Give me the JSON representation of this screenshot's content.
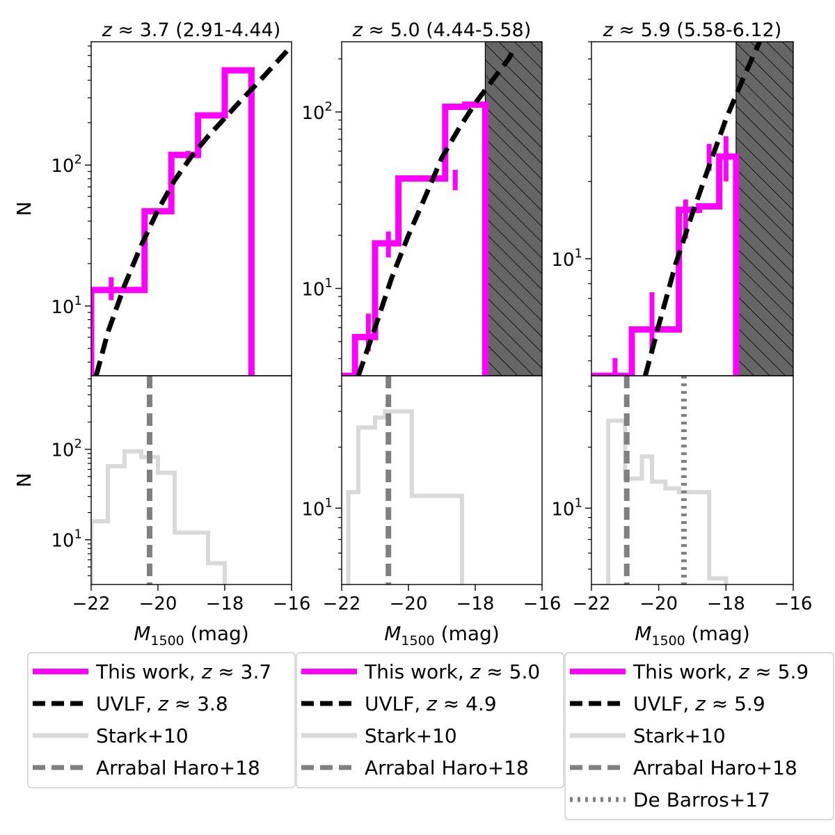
{
  "chart_data": [
    {
      "type": "step",
      "panel": "top",
      "title": "z ≈ 3.7 (2.91-4.44)",
      "xlabel": "",
      "ylabel": "N",
      "xlim": [
        -22,
        -16
      ],
      "ylim": [
        3.2,
        750
      ],
      "yscale": "log",
      "yticks": [
        {
          "value": 10,
          "label": "10",
          "sup": "1"
        },
        {
          "value": 100,
          "label": "10",
          "sup": "2"
        }
      ],
      "xticks": [],
      "hatched_region": null,
      "histogram": {
        "name": "This work, z ≈ 3.7",
        "color": "#ff00ff",
        "edges": [
          -22,
          -21.2,
          -20.4,
          -19.6,
          -18.8,
          -18.0,
          -17.2,
          -16.5
        ],
        "counts": [
          13,
          13,
          47,
          118,
          225,
          470,
          2
        ],
        "errorbars": [
          {
            "x": -21.4,
            "lo": 11,
            "hi": 16
          },
          {
            "x": -19.1,
            "lo": 110,
            "hi": 126
          }
        ]
      },
      "model_curve": {
        "name": "UVLF, z ≈ 3.8",
        "color": "#000000",
        "x": [
          -21.85,
          -21.5,
          -21.0,
          -20.5,
          -20.0,
          -19.5,
          -19.0,
          -18.5,
          -18.0,
          -17.5,
          -17.0,
          -16.5,
          -16.0
        ],
        "y": [
          3.2,
          6.5,
          14,
          27,
          48,
          78,
          115,
          160,
          215,
          290,
          385,
          520,
          700
        ]
      },
      "vlines": []
    },
    {
      "type": "step",
      "panel": "top",
      "title": "z ≈ 5.0 (4.44-5.58)",
      "xlabel": "",
      "ylabel": "",
      "xlim": [
        -22,
        -16
      ],
      "ylim": [
        3.2,
        250
      ],
      "yscale": "log",
      "yticks": [
        {
          "value": 10,
          "label": "10",
          "sup": "1"
        },
        {
          "value": 100,
          "label": "10",
          "sup": "2"
        }
      ],
      "xticks": [],
      "hatched_region": {
        "x0": -17.7,
        "x1": -16
      },
      "histogram": {
        "name": "This work, z ≈ 5.0",
        "color": "#ff00ff",
        "edges": [
          -22,
          -21.6,
          -21.0,
          -20.3,
          -19.6,
          -18.9,
          -18.3,
          -17.7
        ],
        "counts": [
          3.2,
          5.3,
          18,
          42,
          42,
          107,
          110
        ],
        "errorbars": [
          {
            "x": -20.6,
            "lo": 15,
            "hi": 21
          },
          {
            "x": -21.2,
            "lo": 4.4,
            "hi": 7.2
          },
          {
            "x": -18.6,
            "lo": 36,
            "hi": 47
          }
        ]
      },
      "model_curve": {
        "name": "UVLF, z ≈ 4.9",
        "color": "#000000",
        "x": [
          -21.5,
          -21.0,
          -20.5,
          -20.0,
          -19.5,
          -19.0,
          -18.5,
          -18.0,
          -17.5,
          -17.0,
          -16.8
        ],
        "y": [
          3.2,
          6,
          11.5,
          20,
          33,
          55,
          80,
          112,
          150,
          200,
          235
        ]
      },
      "vlines": []
    },
    {
      "type": "step",
      "panel": "top",
      "title": "z ≈ 5.9 (5.58-6.12)",
      "xlabel": "",
      "ylabel": "",
      "xlim": [
        -22,
        -16
      ],
      "ylim": [
        3.5,
        70
      ],
      "yscale": "log",
      "yticks": [
        {
          "value": 10,
          "label": "10",
          "sup": "1"
        }
      ],
      "xticks": [],
      "hatched_region": {
        "x0": -17.7,
        "x1": -16
      },
      "histogram": {
        "name": "This work, z ≈ 5.9",
        "color": "#ff00ff",
        "edges": [
          -22,
          -21.3,
          -20.8,
          -20.0,
          -19.4,
          -18.8,
          -18.2,
          -17.7
        ],
        "counts": [
          3.5,
          3.5,
          5.3,
          5.3,
          15.5,
          16,
          25
        ],
        "errorbars": [
          {
            "x": -21.3,
            "lo": 3.5,
            "hi": 4.1
          },
          {
            "x": -20.2,
            "lo": 4.3,
            "hi": 7.4
          },
          {
            "x": -19.2,
            "lo": 12,
            "hi": 17
          },
          {
            "x": -18.5,
            "lo": 22,
            "hi": 28
          },
          {
            "x": -18.0,
            "lo": 20,
            "hi": 30
          }
        ]
      },
      "model_curve": {
        "name": "UVLF, z ≈ 5.9",
        "color": "#000000",
        "x": [
          -20.4,
          -20.0,
          -19.5,
          -19.0,
          -18.5,
          -18.0,
          -17.5,
          -17.0
        ],
        "y": [
          3.5,
          5.5,
          9.5,
          15,
          23,
          35,
          50,
          70
        ]
      },
      "vlines": []
    },
    {
      "type": "step",
      "panel": "bottom",
      "title": "",
      "xlabel": "M1500 (mag)",
      "ylabel": "N",
      "xlim": [
        -22,
        -16
      ],
      "ylim": [
        3.2,
        650
      ],
      "yscale": "log",
      "yticks": [
        {
          "value": 10,
          "label": "10",
          "sup": "1"
        },
        {
          "value": 100,
          "label": "10",
          "sup": "2"
        }
      ],
      "xticks": [
        -22,
        -20,
        -18,
        -16
      ],
      "xtick_labels": [
        "−22",
        "−20",
        "−18",
        "−16"
      ],
      "hatched_region": null,
      "histogram": {
        "name": "Stark+10",
        "color": "#d9d9d9",
        "edges": [
          -22,
          -21.5,
          -21.0,
          -20.5,
          -20.0,
          -19.5,
          -19.0,
          -18.5,
          -18.0
        ],
        "counts": [
          16,
          65,
          95,
          82,
          55,
          12,
          12,
          5.5
        ],
        "errorbars": []
      },
      "model_curve": null,
      "vlines": [
        {
          "name": "Arrabal Haro+18",
          "x": -20.25,
          "style": "dashed",
          "color": "#808080"
        }
      ]
    },
    {
      "type": "step",
      "panel": "bottom",
      "title": "",
      "xlabel": "M1500 (mag)",
      "ylabel": "",
      "xlim": [
        -22,
        -16
      ],
      "ylim": [
        4.2,
        45
      ],
      "yscale": "log",
      "yticks": [
        {
          "value": 10,
          "label": "10",
          "sup": "1"
        }
      ],
      "xticks": [
        -22,
        -20,
        -18,
        -16
      ],
      "xtick_labels": [
        "−22",
        "−20",
        "−18",
        "−16"
      ],
      "hatched_region": null,
      "histogram": {
        "name": "Stark+10",
        "color": "#d9d9d9",
        "edges": [
          -21.8,
          -21.5,
          -21.0,
          -20.7,
          -19.9,
          -18.4
        ],
        "counts": [
          12,
          25,
          28,
          30,
          11.5
        ],
        "errorbars": []
      },
      "model_curve": null,
      "vlines": [
        {
          "name": "Arrabal Haro+18",
          "x": -20.6,
          "style": "dashed",
          "color": "#808080"
        }
      ]
    },
    {
      "type": "step",
      "panel": "bottom",
      "title": "",
      "xlabel": "M1500 (mag)",
      "ylabel": "",
      "xlim": [
        -22,
        -16
      ],
      "ylim": [
        4.2,
        45
      ],
      "yscale": "log",
      "yticks": [
        {
          "value": 10,
          "label": "10",
          "sup": "1"
        }
      ],
      "xticks": [
        -22,
        -20,
        -18,
        -16
      ],
      "xtick_labels": [
        "−22",
        "−20",
        "−18",
        "−16"
      ],
      "hatched_region": null,
      "histogram": {
        "name": "Stark+10",
        "color": "#d9d9d9",
        "edges": [
          -21.5,
          -21.3,
          -21.0,
          -20.5,
          -20.2,
          -19.8,
          -19.4,
          -18.5,
          -18.0
        ],
        "counts": [
          27,
          27,
          14,
          18,
          13.5,
          12.5,
          12,
          4.5
        ],
        "errorbars": []
      },
      "model_curve": null,
      "vlines": [
        {
          "name": "Arrabal Haro+18",
          "x": -20.95,
          "style": "dashed",
          "color": "#808080"
        },
        {
          "name": "De Barros+17",
          "x": -19.25,
          "style": "dotted",
          "color": "#808080"
        }
      ]
    }
  ],
  "legends": [
    {
      "entries": [
        {
          "label": "This work, z ≈ 3.7",
          "style": "solid",
          "color": "#ff00ff"
        },
        {
          "label": "UVLF, z ≈ 3.8",
          "style": "dashed",
          "color": "#000000"
        },
        {
          "label": "Stark+10",
          "style": "solid",
          "color": "#d9d9d9"
        },
        {
          "label": "Arrabal Haro+18",
          "style": "dashed",
          "color": "#808080"
        }
      ]
    },
    {
      "entries": [
        {
          "label": "This work, z ≈ 5.0",
          "style": "solid",
          "color": "#ff00ff"
        },
        {
          "label": "UVLF, z ≈ 4.9",
          "style": "dashed",
          "color": "#000000"
        },
        {
          "label": "Stark+10",
          "style": "solid",
          "color": "#d9d9d9"
        },
        {
          "label": "Arrabal Haro+18",
          "style": "dashed",
          "color": "#808080"
        }
      ]
    },
    {
      "entries": [
        {
          "label": "This work, z ≈ 5.9",
          "style": "solid",
          "color": "#ff00ff"
        },
        {
          "label": "UVLF, z ≈ 5.9",
          "style": "dashed",
          "color": "#000000"
        },
        {
          "label": "Stark+10",
          "style": "solid",
          "color": "#d9d9d9"
        },
        {
          "label": "Arrabal Haro+18",
          "style": "dashed",
          "color": "#808080"
        },
        {
          "label": "De Barros+17",
          "style": "dotted",
          "color": "#808080"
        }
      ]
    }
  ]
}
